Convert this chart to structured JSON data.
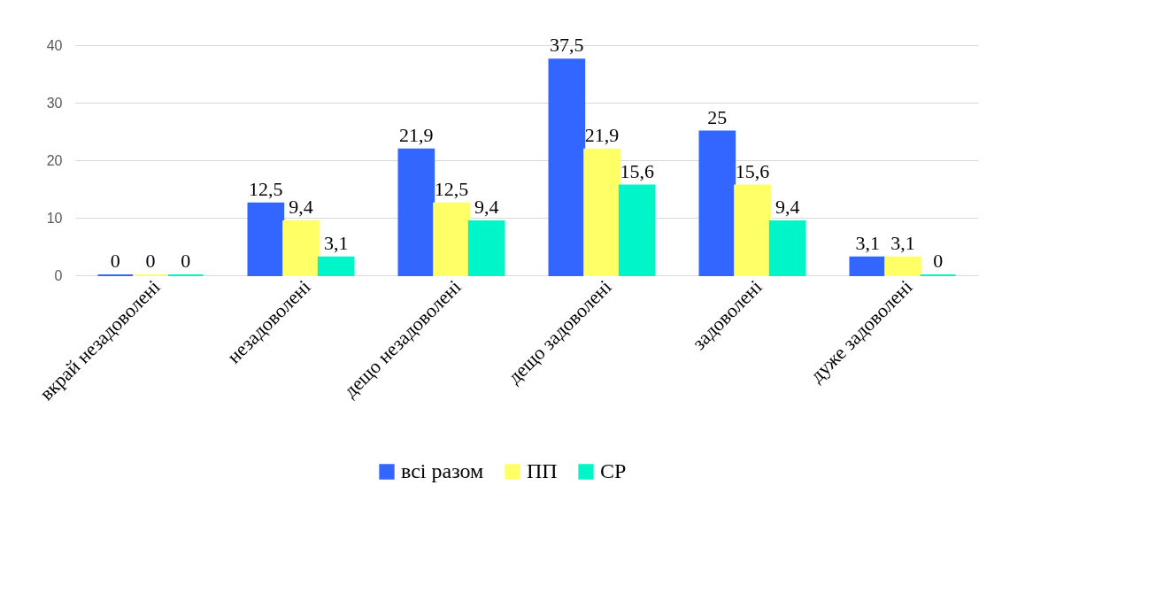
{
  "chart_data": {
    "type": "bar",
    "categories": [
      "вкрай незадоволені",
      "незадоволені",
      "дещо незадоволені",
      "дещо задоволені",
      "задоволені",
      "дуже задоволені"
    ],
    "series": [
      {
        "name": "всі разом",
        "color": "#3366ff",
        "values": [
          0,
          12.5,
          21.9,
          37.5,
          25,
          3.1
        ],
        "value_labels": [
          "0",
          "12,5",
          "21,9",
          "37,5",
          "25",
          "3,1"
        ]
      },
      {
        "name": "ПП",
        "color": "#ffff66",
        "values": [
          0,
          9.4,
          12.5,
          21.9,
          15.6,
          3.1
        ],
        "value_labels": [
          "0",
          "9,4",
          "12,5",
          "21,9",
          "15,6",
          "3,1"
        ]
      },
      {
        "name": "СР",
        "color": "#00f5c8",
        "values": [
          0,
          3.1,
          9.4,
          15.6,
          9.4,
          0
        ],
        "value_labels": [
          "0",
          "3,1",
          "9,4",
          "15,6",
          "9,4",
          "0"
        ]
      }
    ],
    "ylim": [
      0,
      40
    ],
    "yticks": [
      0,
      10,
      20,
      30,
      40
    ],
    "grid": "y",
    "legend": "bottom"
  }
}
